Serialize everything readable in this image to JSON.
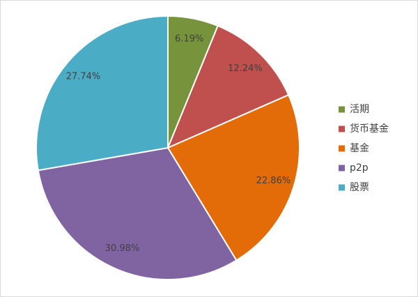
{
  "chart_data": {
    "type": "pie",
    "categories": [
      "活期",
      "货币基金",
      "基金",
      "p2p",
      "股票"
    ],
    "values": [
      6.19,
      12.24,
      22.86,
      30.98,
      27.74
    ],
    "value_labels": [
      "6.19%",
      "12.24%",
      "22.86%",
      "30.98%",
      "27.74%"
    ],
    "colors": [
      "#77933c",
      "#c0504d",
      "#e36c09",
      "#8064a2",
      "#4bacc6"
    ],
    "legend": "right"
  }
}
